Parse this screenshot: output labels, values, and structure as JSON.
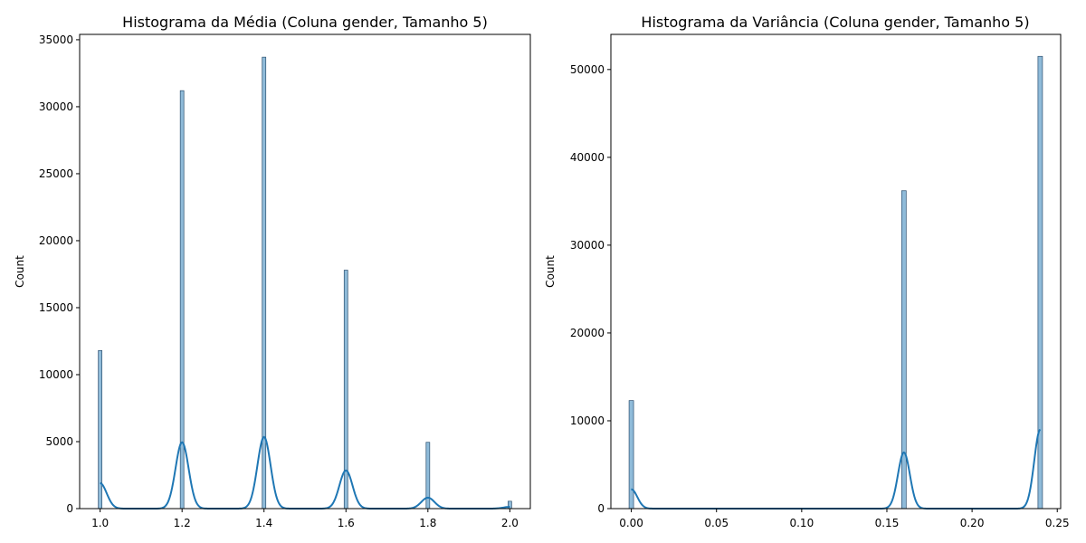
{
  "chart_data": [
    {
      "type": "bar",
      "title": "Histograma da Média (Coluna gender, Tamanho 5)",
      "xlabel": "",
      "ylabel": "Count",
      "xlim": [
        0.95,
        2.05
      ],
      "ylim": [
        0,
        35400
      ],
      "xticks": [
        "1.0",
        "1.2",
        "1.4",
        "1.6",
        "1.8",
        "2.0"
      ],
      "yticks": [
        "0",
        "5000",
        "10000",
        "15000",
        "20000",
        "25000",
        "30000",
        "35000"
      ],
      "grid": false,
      "bar_color": "#1f77b4",
      "bars": [
        {
          "x": 1.0,
          "count": 11800
        },
        {
          "x": 1.2,
          "count": 31200
        },
        {
          "x": 1.4,
          "count": 33700
        },
        {
          "x": 1.6,
          "count": 17800
        },
        {
          "x": 1.8,
          "count": 4950
        },
        {
          "x": 2.0,
          "count": 550
        }
      ],
      "kde": [
        {
          "x": 1.0,
          "height": 1900
        },
        {
          "x": 1.2,
          "height": 4950
        },
        {
          "x": 1.4,
          "height": 5350
        },
        {
          "x": 1.6,
          "height": 2850
        },
        {
          "x": 1.8,
          "height": 820
        },
        {
          "x": 2.0,
          "height": 130
        }
      ]
    },
    {
      "type": "bar",
      "title": "Histograma da Variância (Coluna gender, Tamanho 5)",
      "xlabel": "",
      "ylabel": "Count",
      "xlim": [
        -0.012,
        0.252
      ],
      "ylim": [
        0,
        54000
      ],
      "xticks": [
        "0.00",
        "0.05",
        "0.10",
        "0.15",
        "0.20",
        "0.25"
      ],
      "yticks": [
        "0",
        "10000",
        "20000",
        "30000",
        "40000",
        "50000"
      ],
      "grid": false,
      "bar_color": "#1f77b4",
      "bars": [
        {
          "x": 0.0,
          "count": 12300
        },
        {
          "x": 0.16,
          "count": 36200
        },
        {
          "x": 0.24,
          "count": 51500
        }
      ],
      "kde": [
        {
          "x": 0.0,
          "height": 2200
        },
        {
          "x": 0.16,
          "height": 6400
        },
        {
          "x": 0.24,
          "height": 9000
        }
      ]
    }
  ]
}
